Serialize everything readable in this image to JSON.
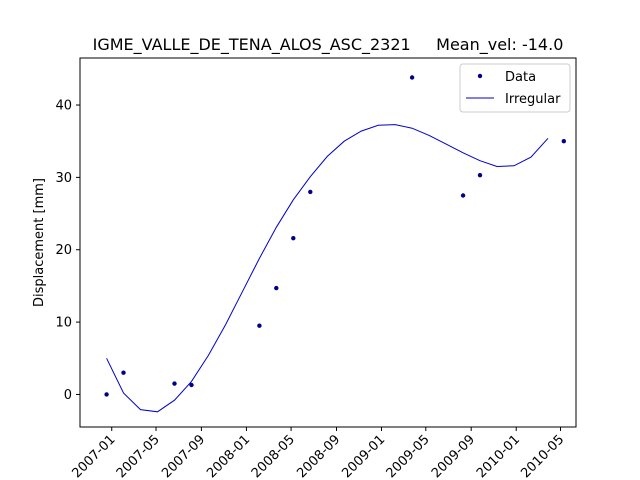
{
  "chart_data": {
    "type": "scatter",
    "title": "IGME_VALLE_DE_TENA_ALOS_ASC_2321     Mean_vel: -14.0",
    "xlabel": "",
    "ylabel": "Displacement [mm]",
    "xlim": [
      "2006-10-07",
      "2010-06-12"
    ],
    "ylim": [
      -4.5,
      46.5
    ],
    "xticks": [
      "2007-01",
      "2007-05",
      "2007-09",
      "2008-01",
      "2008-05",
      "2008-09",
      "2009-01",
      "2009-05",
      "2009-09",
      "2010-01",
      "2010-05"
    ],
    "yticks": [
      0,
      10,
      20,
      30,
      40
    ],
    "grid": false,
    "legend_position": "top-right",
    "series": [
      {
        "name": "Data",
        "kind": "scatter",
        "color": "#00008b",
        "points": [
          {
            "x": "2006-12-18",
            "y": 0.0
          },
          {
            "x": "2007-02-02",
            "y": 3.0
          },
          {
            "x": "2007-06-20",
            "y": 1.5
          },
          {
            "x": "2007-08-05",
            "y": 1.3
          },
          {
            "x": "2008-02-05",
            "y": 9.5
          },
          {
            "x": "2008-03-22",
            "y": 14.7
          },
          {
            "x": "2008-05-07",
            "y": 21.6
          },
          {
            "x": "2008-06-22",
            "y": 28.0
          },
          {
            "x": "2009-03-25",
            "y": 43.8
          },
          {
            "x": "2009-08-10",
            "y": 27.5
          },
          {
            "x": "2009-09-25",
            "y": 30.3
          },
          {
            "x": "2010-05-10",
            "y": 35.0
          }
        ]
      },
      {
        "name": "Irregular",
        "kind": "line",
        "color": "#0000cd",
        "points": [
          {
            "x": "2006-12-18",
            "y": 5.0
          },
          {
            "x": "2007-02-02",
            "y": 0.2
          },
          {
            "x": "2007-03-20",
            "y": -2.1
          },
          {
            "x": "2007-05-05",
            "y": -2.4
          },
          {
            "x": "2007-06-20",
            "y": -0.8
          },
          {
            "x": "2007-08-05",
            "y": 1.8
          },
          {
            "x": "2007-09-20",
            "y": 5.4
          },
          {
            "x": "2007-11-05",
            "y": 9.6
          },
          {
            "x": "2007-12-21",
            "y": 14.2
          },
          {
            "x": "2008-02-05",
            "y": 18.8
          },
          {
            "x": "2008-03-22",
            "y": 23.1
          },
          {
            "x": "2008-05-07",
            "y": 26.9
          },
          {
            "x": "2008-06-22",
            "y": 30.1
          },
          {
            "x": "2008-08-07",
            "y": 32.9
          },
          {
            "x": "2008-09-22",
            "y": 35.0
          },
          {
            "x": "2008-11-07",
            "y": 36.4
          },
          {
            "x": "2008-12-23",
            "y": 37.2
          },
          {
            "x": "2009-02-07",
            "y": 37.3
          },
          {
            "x": "2009-03-25",
            "y": 36.8
          },
          {
            "x": "2009-05-10",
            "y": 35.8
          },
          {
            "x": "2009-06-25",
            "y": 34.6
          },
          {
            "x": "2009-08-10",
            "y": 33.4
          },
          {
            "x": "2009-09-25",
            "y": 32.3
          },
          {
            "x": "2009-11-10",
            "y": 31.5
          },
          {
            "x": "2009-12-26",
            "y": 31.6
          },
          {
            "x": "2010-02-10",
            "y": 32.8
          },
          {
            "x": "2010-03-28",
            "y": 35.4
          }
        ]
      }
    ]
  }
}
